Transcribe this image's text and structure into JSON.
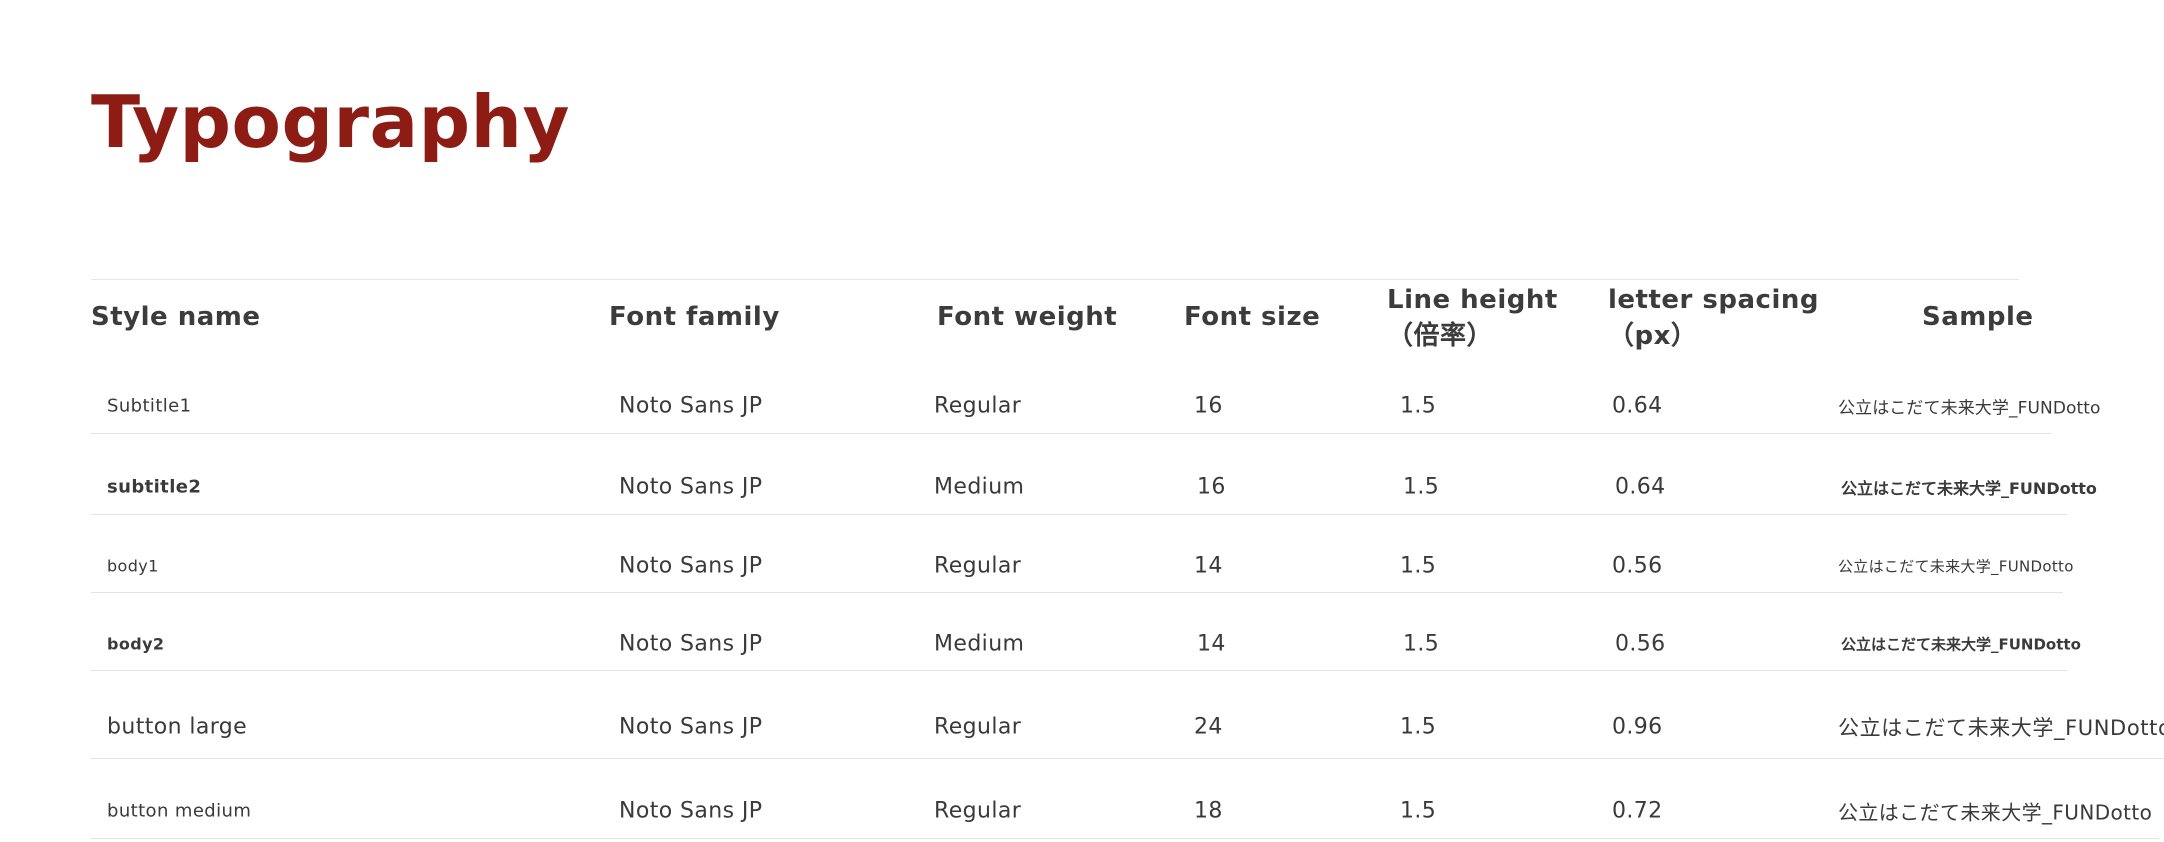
{
  "page_title": "Typography",
  "columns": {
    "style_name": "Style name",
    "font_family": "Font family",
    "font_weight": "Font weight",
    "font_size": "Font size",
    "line_height_1": "Line height",
    "line_height_2": "（倍率）",
    "letter_spacing_1": "letter spacing",
    "letter_spacing_2": "（px）",
    "sample": "Sample"
  },
  "rows": [
    {
      "name": "Subtitle1",
      "family": "Noto Sans JP",
      "weight": "Regular",
      "size": "16",
      "line_height": "1.5",
      "letter_spacing": "0.64",
      "sample": "公立はこだて未来大学_FUNDotto"
    },
    {
      "name": "subtitle2",
      "family": "Noto Sans JP",
      "weight": "Medium",
      "size": "16",
      "line_height": "1.5",
      "letter_spacing": "0.64",
      "sample": "公立はこだて未来大学_FUNDotto"
    },
    {
      "name": "body1",
      "family": "Noto Sans JP",
      "weight": "Regular",
      "size": "14",
      "line_height": "1.5",
      "letter_spacing": "0.56",
      "sample": "公立はこだて未来大学_FUNDotto"
    },
    {
      "name": "body2",
      "family": "Noto Sans JP",
      "weight": "Medium",
      "size": "14",
      "line_height": "1.5",
      "letter_spacing": "0.56",
      "sample": "公立はこだて未来大学_FUNDotto"
    },
    {
      "name": "button large",
      "family": "Noto Sans JP",
      "weight": "Regular",
      "size": "24",
      "line_height": "1.5",
      "letter_spacing": "0.96",
      "sample": "公立はこだて未来大学_FUNDotto"
    },
    {
      "name": "button medium",
      "family": "Noto Sans JP",
      "weight": "Regular",
      "size": "18",
      "line_height": "1.5",
      "letter_spacing": "0.72",
      "sample": "公立はこだて未来大学_FUNDotto"
    }
  ]
}
